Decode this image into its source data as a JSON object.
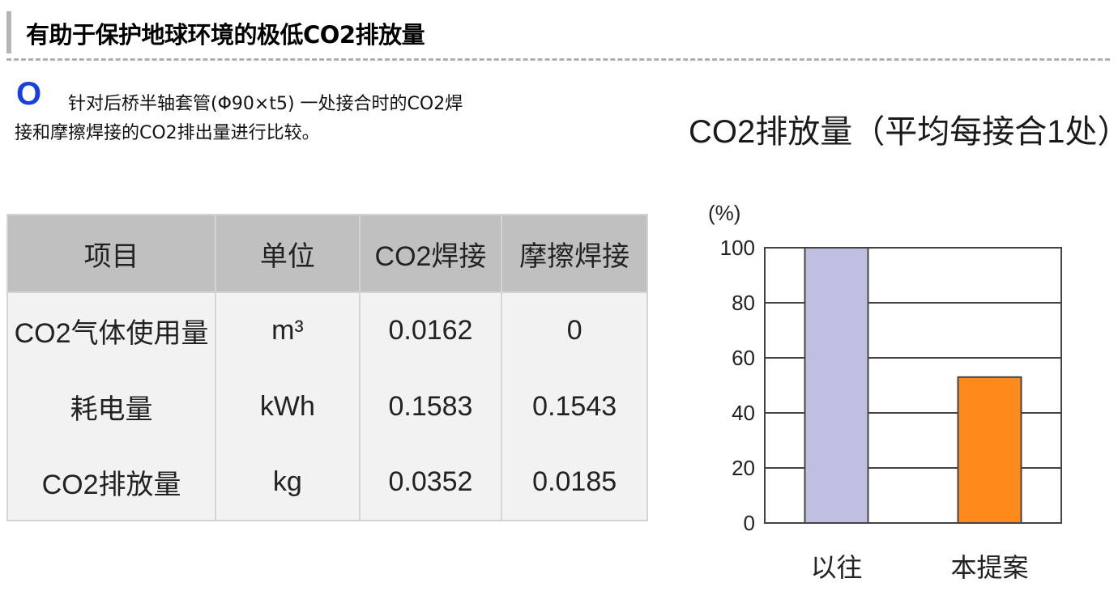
{
  "header": {
    "title": "有助于保护地球环境的极低CO2排放量"
  },
  "intro": {
    "bullet": "O",
    "line1": "针对后桥半轴套管(Φ90×t5) 一处接合时的CO2焊",
    "line2": "接和摩擦焊接的CO2排出量进行比较。"
  },
  "table": {
    "headers": [
      "项目",
      "单位",
      "CO2焊接",
      "摩擦焊接"
    ],
    "rows": [
      [
        "CO2气体使用量",
        "m³",
        "0.0162",
        "0"
      ],
      [
        "耗电量",
        "kWh",
        "0.1583",
        "0.1543"
      ],
      [
        "CO2排放量",
        "kg",
        "0.0352",
        "0.0185"
      ]
    ]
  },
  "chart_data": {
    "type": "bar",
    "title": "CO2排放量（平均每接合1处）",
    "ylabel": "(%)",
    "xlabel": "",
    "categories": [
      "以往",
      "本提案"
    ],
    "values": [
      100,
      53
    ],
    "colors": [
      "#c0bfe2",
      "#ff8a1c"
    ],
    "ylim": [
      0,
      100
    ],
    "yticks": [
      0,
      20,
      40,
      60,
      80,
      100
    ],
    "grid": true,
    "legend": "none"
  }
}
